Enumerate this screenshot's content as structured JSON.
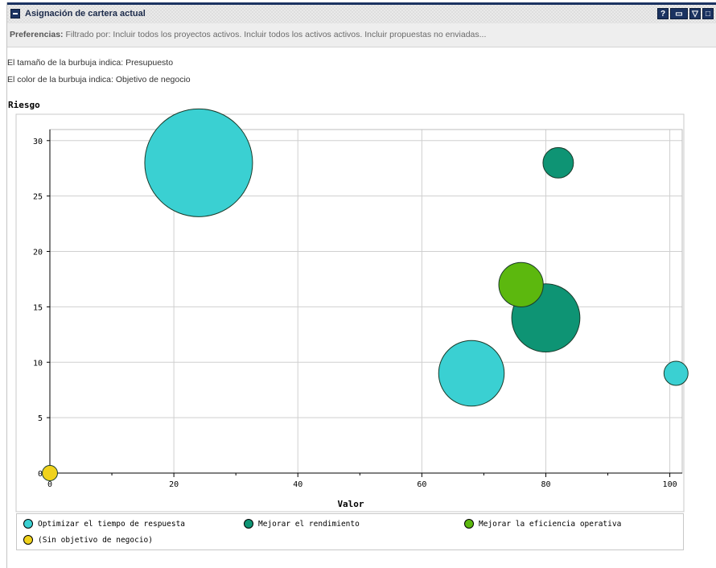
{
  "portlet": {
    "title": "Asignación de cartera actual",
    "tools": [
      "?",
      "▭",
      "▽",
      "□"
    ]
  },
  "preferences": {
    "label": "Preferencias:",
    "text": "Filtrado por: Incluir todos los proyectos activos. Incluir todos los activos activos. Incluir propuestas no enviadas..."
  },
  "info": {
    "size_note": "El tamaño de la burbuja indica: Presupuesto",
    "color_note": "El color de la burbuja indica: Objetivo de negocio"
  },
  "chart_data": {
    "type": "scatter",
    "title": "",
    "xlabel": "Valor",
    "ylabel": "Riesgo",
    "xlim": [
      0,
      102
    ],
    "ylim": [
      0,
      31
    ],
    "xticks": [
      0,
      20,
      40,
      60,
      80,
      100
    ],
    "yticks": [
      0,
      5,
      10,
      15,
      20,
      25,
      30
    ],
    "grid": true,
    "legend_position": "bottom",
    "series": [
      {
        "name": "Optimizar el tiempo de respuesta",
        "color": "#3ad0d2",
        "points": [
          {
            "x": 24,
            "y": 28,
            "size": 100
          },
          {
            "x": 68,
            "y": 9,
            "size": 37
          },
          {
            "x": 101,
            "y": 9,
            "size": 5
          }
        ]
      },
      {
        "name": "Mejorar el rendimiento",
        "color": "#0e9474",
        "points": [
          {
            "x": 80,
            "y": 14,
            "size": 40
          },
          {
            "x": 82,
            "y": 28,
            "size": 8
          }
        ]
      },
      {
        "name": "Mejorar la eficiencia operativa",
        "color": "#5cb80e",
        "points": [
          {
            "x": 76,
            "y": 17,
            "size": 17
          }
        ]
      },
      {
        "name": "(Sin objetivo de negocio)",
        "color": "#f0d21c",
        "points": [
          {
            "x": 0,
            "y": 0,
            "size": 2
          }
        ]
      }
    ]
  }
}
